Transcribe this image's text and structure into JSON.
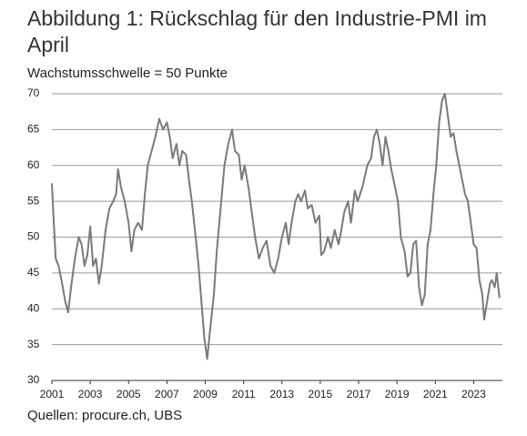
{
  "chart_data": {
    "type": "line",
    "title": "Abbildung 1: Rückschlag für den Industrie-PMI im April",
    "subtitle": "Wachstumsschwelle = 50 Punkte",
    "source": "Quellen: procure.ch, UBS",
    "x": [
      2001.0,
      2001.1,
      2001.2,
      2001.35,
      2001.5,
      2001.7,
      2001.85,
      2002.0,
      2002.2,
      2002.4,
      2002.55,
      2002.7,
      2002.85,
      2003.0,
      2003.15,
      2003.3,
      2003.45,
      2003.6,
      2003.8,
      2004.0,
      2004.2,
      2004.35,
      2004.45,
      2004.6,
      2004.8,
      2005.0,
      2005.15,
      2005.3,
      2005.5,
      2005.7,
      2005.85,
      2006.0,
      2006.2,
      2006.4,
      2006.6,
      2006.8,
      2007.0,
      2007.15,
      2007.3,
      2007.5,
      2007.65,
      2007.8,
      2008.0,
      2008.15,
      2008.3,
      2008.5,
      2008.65,
      2008.8,
      2008.95,
      2009.1,
      2009.25,
      2009.45,
      2009.6,
      2009.8,
      2010.0,
      2010.2,
      2010.4,
      2010.55,
      2010.75,
      2010.9,
      2011.05,
      2011.25,
      2011.45,
      2011.6,
      2011.8,
      2012.0,
      2012.2,
      2012.4,
      2012.6,
      2012.8,
      2013.0,
      2013.2,
      2013.35,
      2013.5,
      2013.7,
      2013.85,
      2014.0,
      2014.2,
      2014.35,
      2014.55,
      2014.75,
      2014.95,
      2015.05,
      2015.2,
      2015.4,
      2015.55,
      2015.75,
      2015.95,
      2016.1,
      2016.25,
      2016.45,
      2016.6,
      2016.8,
      2016.95,
      2017.2,
      2017.45,
      2017.65,
      2017.8,
      2017.95,
      2018.1,
      2018.25,
      2018.4,
      2018.55,
      2018.7,
      2018.9,
      2019.05,
      2019.2,
      2019.4,
      2019.55,
      2019.7,
      2019.85,
      2020.0,
      2020.15,
      2020.3,
      2020.45,
      2020.6,
      2020.75,
      2020.9,
      2021.05,
      2021.2,
      2021.35,
      2021.5,
      2021.65,
      2021.8,
      2021.95,
      2022.1,
      2022.25,
      2022.4,
      2022.55,
      2022.7,
      2022.85,
      2023.0,
      2023.15,
      2023.3,
      2023.45,
      2023.55,
      2023.7,
      2023.85,
      2023.95,
      2024.1,
      2024.2,
      2024.35
    ],
    "series": [
      {
        "name": "PMI",
        "color": "#7a7a7a",
        "values": [
          57.5,
          52,
          47,
          46,
          44,
          41,
          39.5,
          43,
          47,
          50,
          49,
          46,
          47.5,
          51.5,
          46,
          47,
          43.5,
          46,
          51,
          54,
          55,
          56,
          59.5,
          57,
          55,
          52,
          48,
          51,
          52,
          51,
          56,
          60,
          62,
          64,
          66.5,
          65,
          66,
          64,
          61,
          63,
          60,
          62,
          61.5,
          58,
          55,
          50,
          46,
          41,
          36,
          33,
          37,
          42,
          48,
          54,
          60,
          63,
          65,
          62,
          61.5,
          58,
          60,
          57,
          53,
          50,
          47,
          48.5,
          49.5,
          46,
          45,
          47,
          50,
          52,
          49,
          52,
          55,
          56,
          55,
          56.5,
          54,
          54.5,
          52,
          53,
          47.5,
          48,
          50,
          48.5,
          51,
          49,
          51,
          53.5,
          55,
          52,
          56.5,
          55,
          57,
          60,
          61,
          64,
          65,
          63,
          60,
          64,
          62,
          59.5,
          57,
          55,
          50,
          48,
          44.5,
          45,
          49,
          49.5,
          43,
          40.5,
          42,
          49,
          51,
          56,
          60,
          66,
          69,
          70,
          67,
          64,
          64.5,
          62,
          60,
          58,
          56,
          55,
          52,
          49,
          48.5,
          44,
          42,
          38.5,
          41,
          43.5,
          44,
          43,
          45,
          41.5
        ]
      }
    ],
    "xlim": [
      2001,
      2024.5
    ],
    "ylim": [
      30,
      70
    ],
    "xticks": [
      2001,
      2003,
      2005,
      2007,
      2009,
      2011,
      2013,
      2015,
      2017,
      2019,
      2021,
      2023
    ],
    "yticks": [
      30,
      35,
      40,
      45,
      50,
      55,
      60,
      65,
      70
    ],
    "grid": true
  }
}
